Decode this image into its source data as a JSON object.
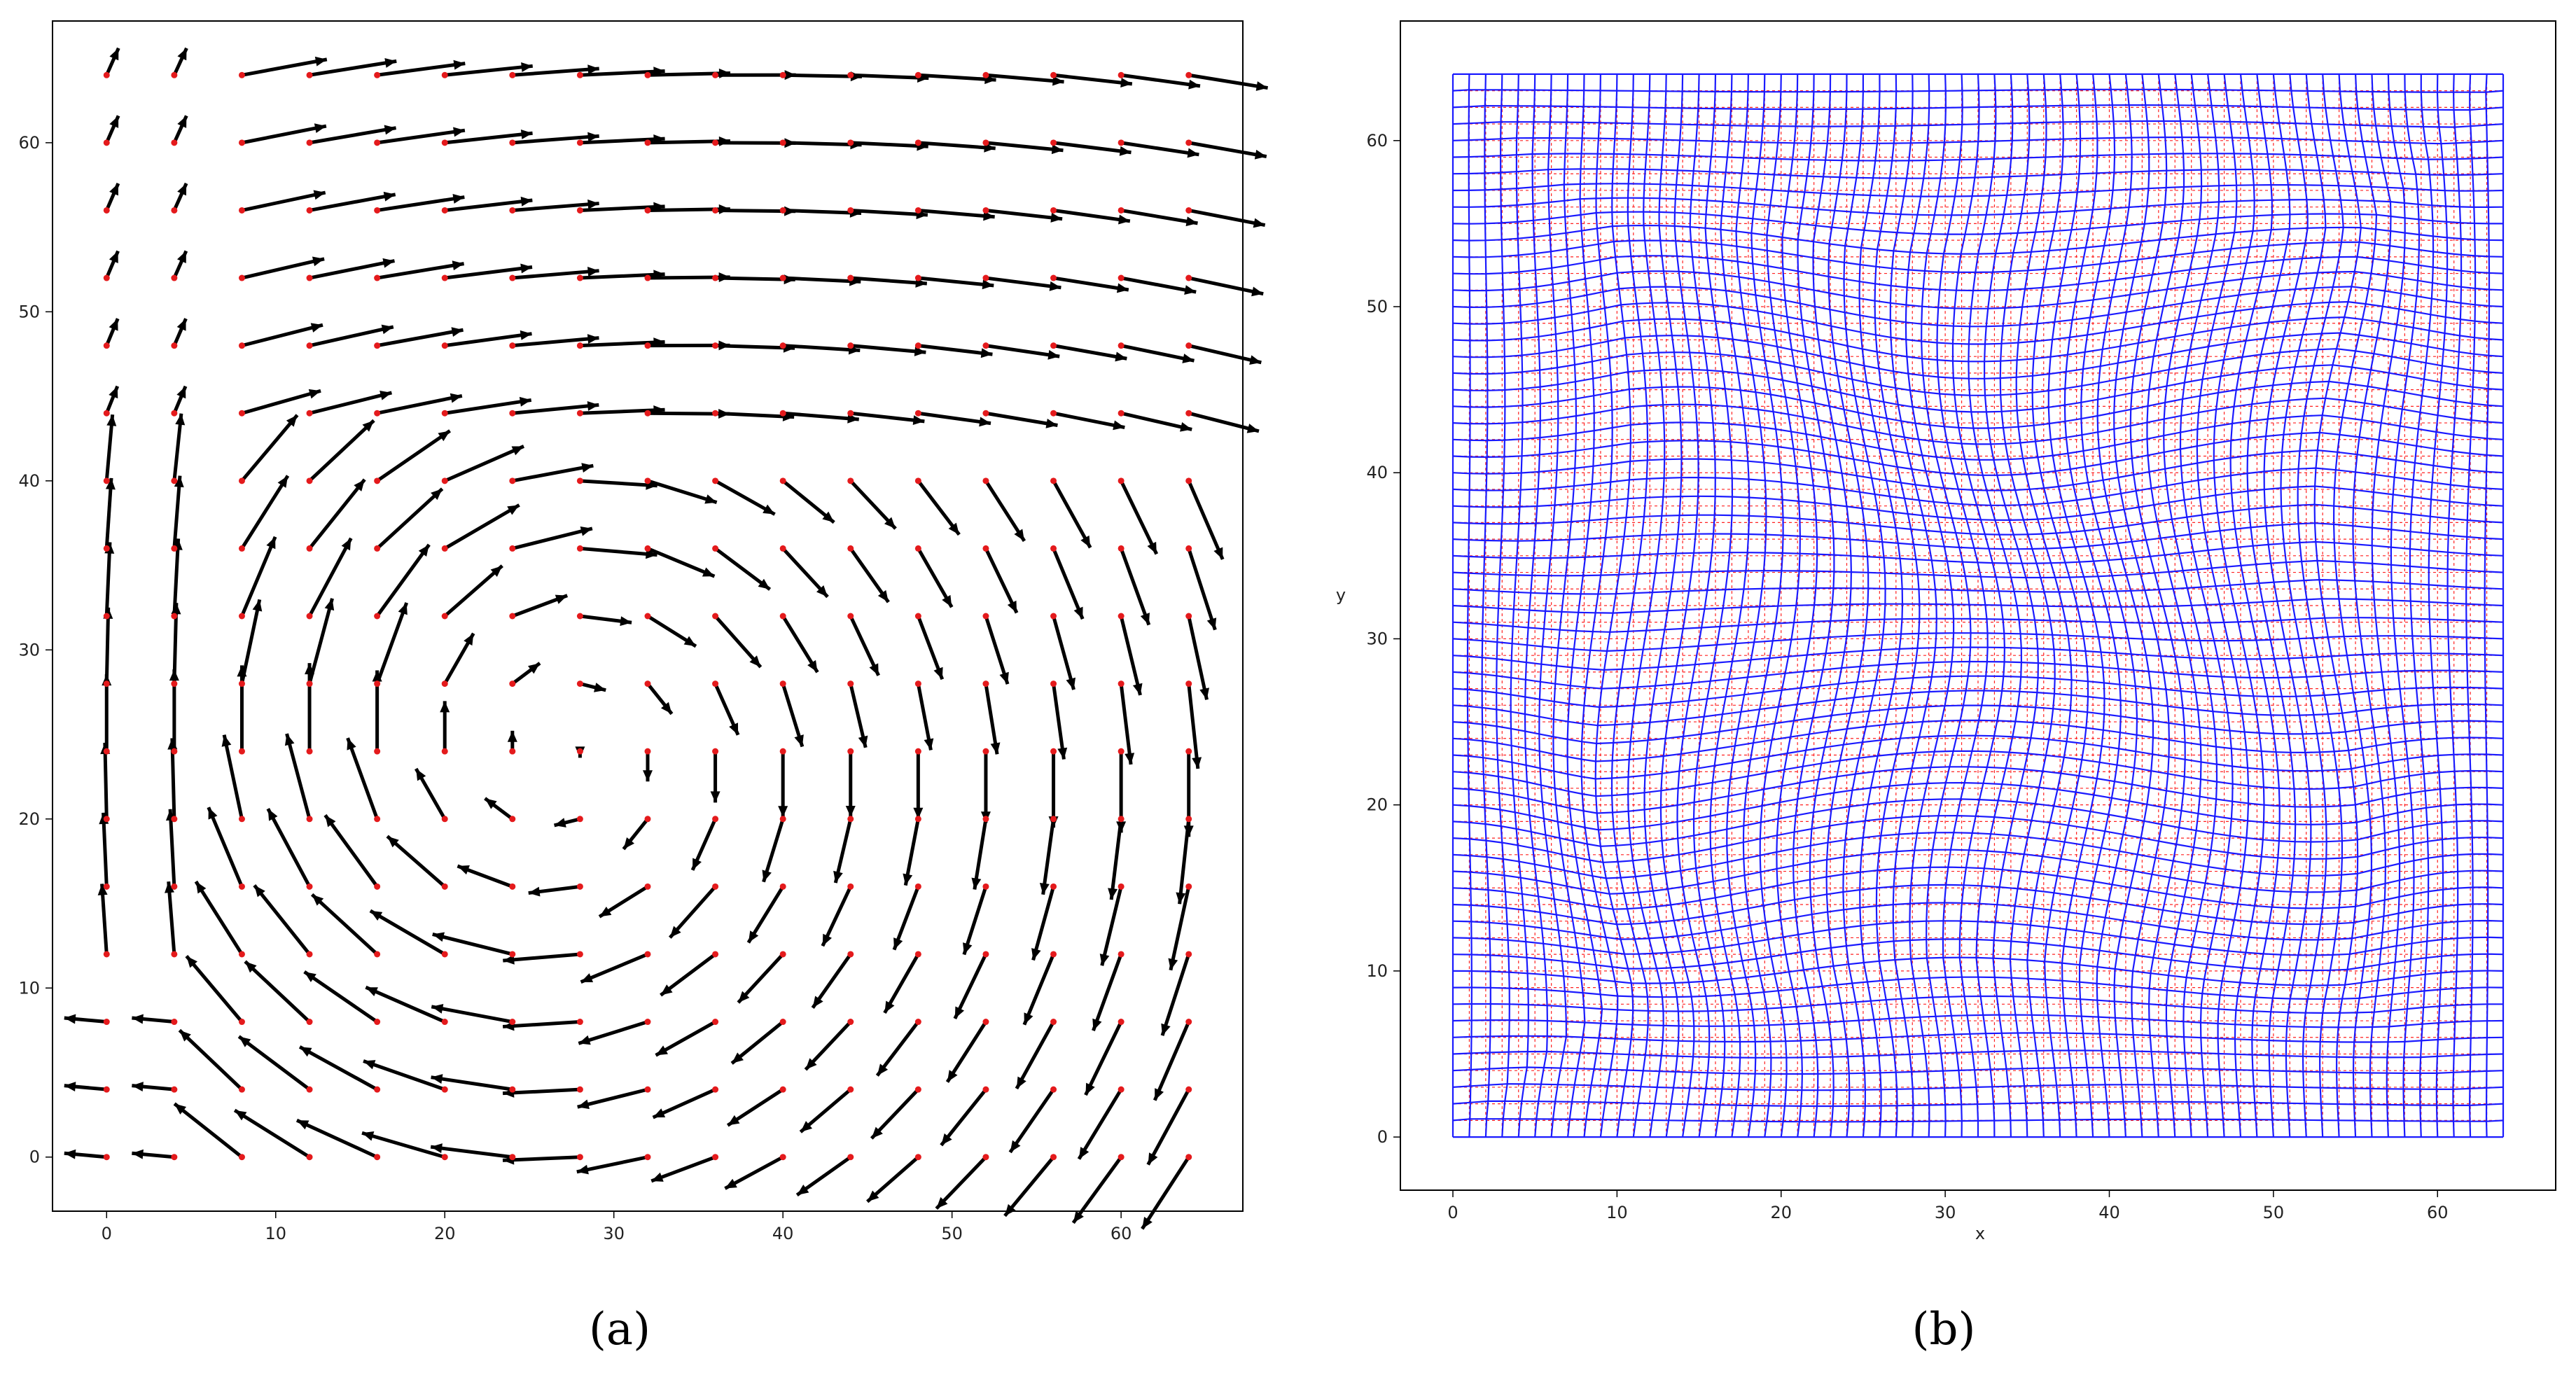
{
  "panels": {
    "a": {
      "label": "(a)"
    },
    "b": {
      "label": "(b)"
    }
  },
  "colors": {
    "points": "#e41a1c",
    "arrows": "#000000",
    "deformed_grid": "#1a1aff",
    "reference_grid": "#ff2020"
  },
  "chart_data": [
    {
      "type": "quiver",
      "panel": "a",
      "xlim": [
        -3.2,
        67.2
      ],
      "ylim": [
        -3.2,
        67.2
      ],
      "xticks": [
        0,
        10,
        20,
        30,
        40,
        50,
        60
      ],
      "yticks": [
        0,
        10,
        20,
        30,
        40,
        50,
        60
      ],
      "grid_points": [
        0,
        4,
        8,
        12,
        16,
        20,
        24,
        28,
        32,
        36,
        40,
        44,
        48,
        52,
        56,
        60,
        64
      ],
      "vortex_center": [
        27,
        24
      ],
      "xlabel": "",
      "ylabel": "",
      "grid": false
    },
    {
      "type": "deformation_grid",
      "panel": "b",
      "xlim": [
        -3.2,
        67.2
      ],
      "ylim": [
        -3.2,
        67.2
      ],
      "xticks": [
        0,
        10,
        20,
        30,
        40,
        50,
        60
      ],
      "yticks": [
        0,
        10,
        20,
        30,
        40,
        50,
        60
      ],
      "grid_spacing": 1,
      "grid_extent": [
        0,
        64
      ],
      "xlabel": "x",
      "ylabel": "y",
      "grid": false
    }
  ]
}
